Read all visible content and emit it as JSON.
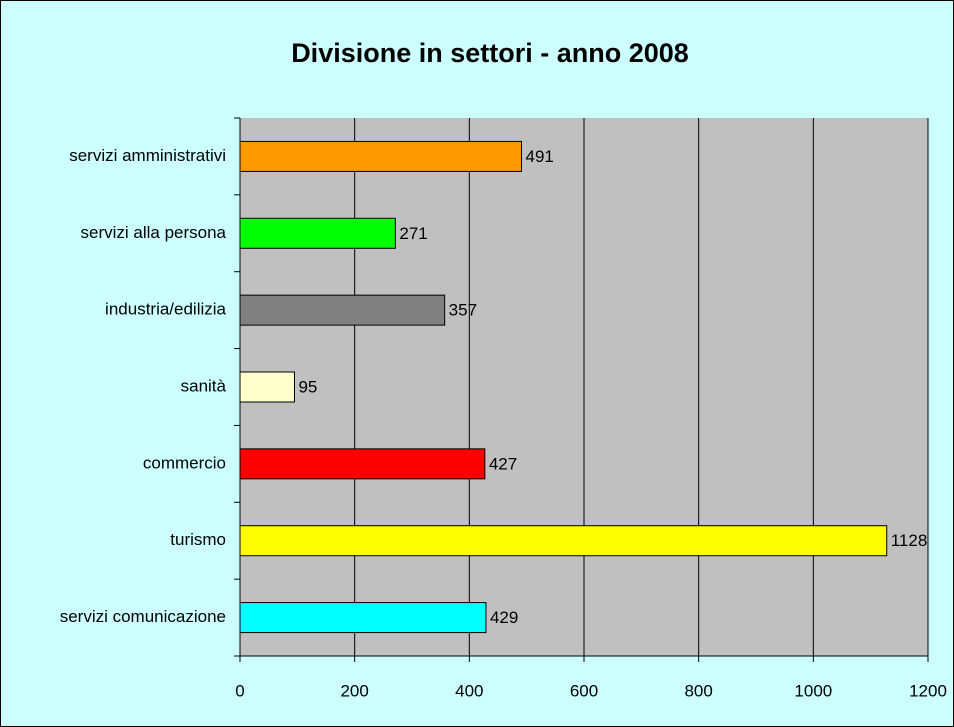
{
  "chart_data": {
    "type": "bar",
    "title": "Divisione in settori - anno 2008",
    "categories": [
      "servizi amministrativi",
      "servizi alla persona",
      "industria/edilizia",
      "sanità",
      "commercio",
      "turismo",
      "servizi comunicazione"
    ],
    "values": [
      491,
      271,
      357,
      95,
      427,
      1128,
      429
    ],
    "colors": [
      "#ff9900",
      "#00ff00",
      "#808080",
      "#ffffcc",
      "#ff0000",
      "#ffff00",
      "#00ffff"
    ],
    "xlim": [
      0,
      1200
    ],
    "xticks": [
      0,
      200,
      400,
      600,
      800,
      1000,
      1200
    ],
    "grid": true
  }
}
